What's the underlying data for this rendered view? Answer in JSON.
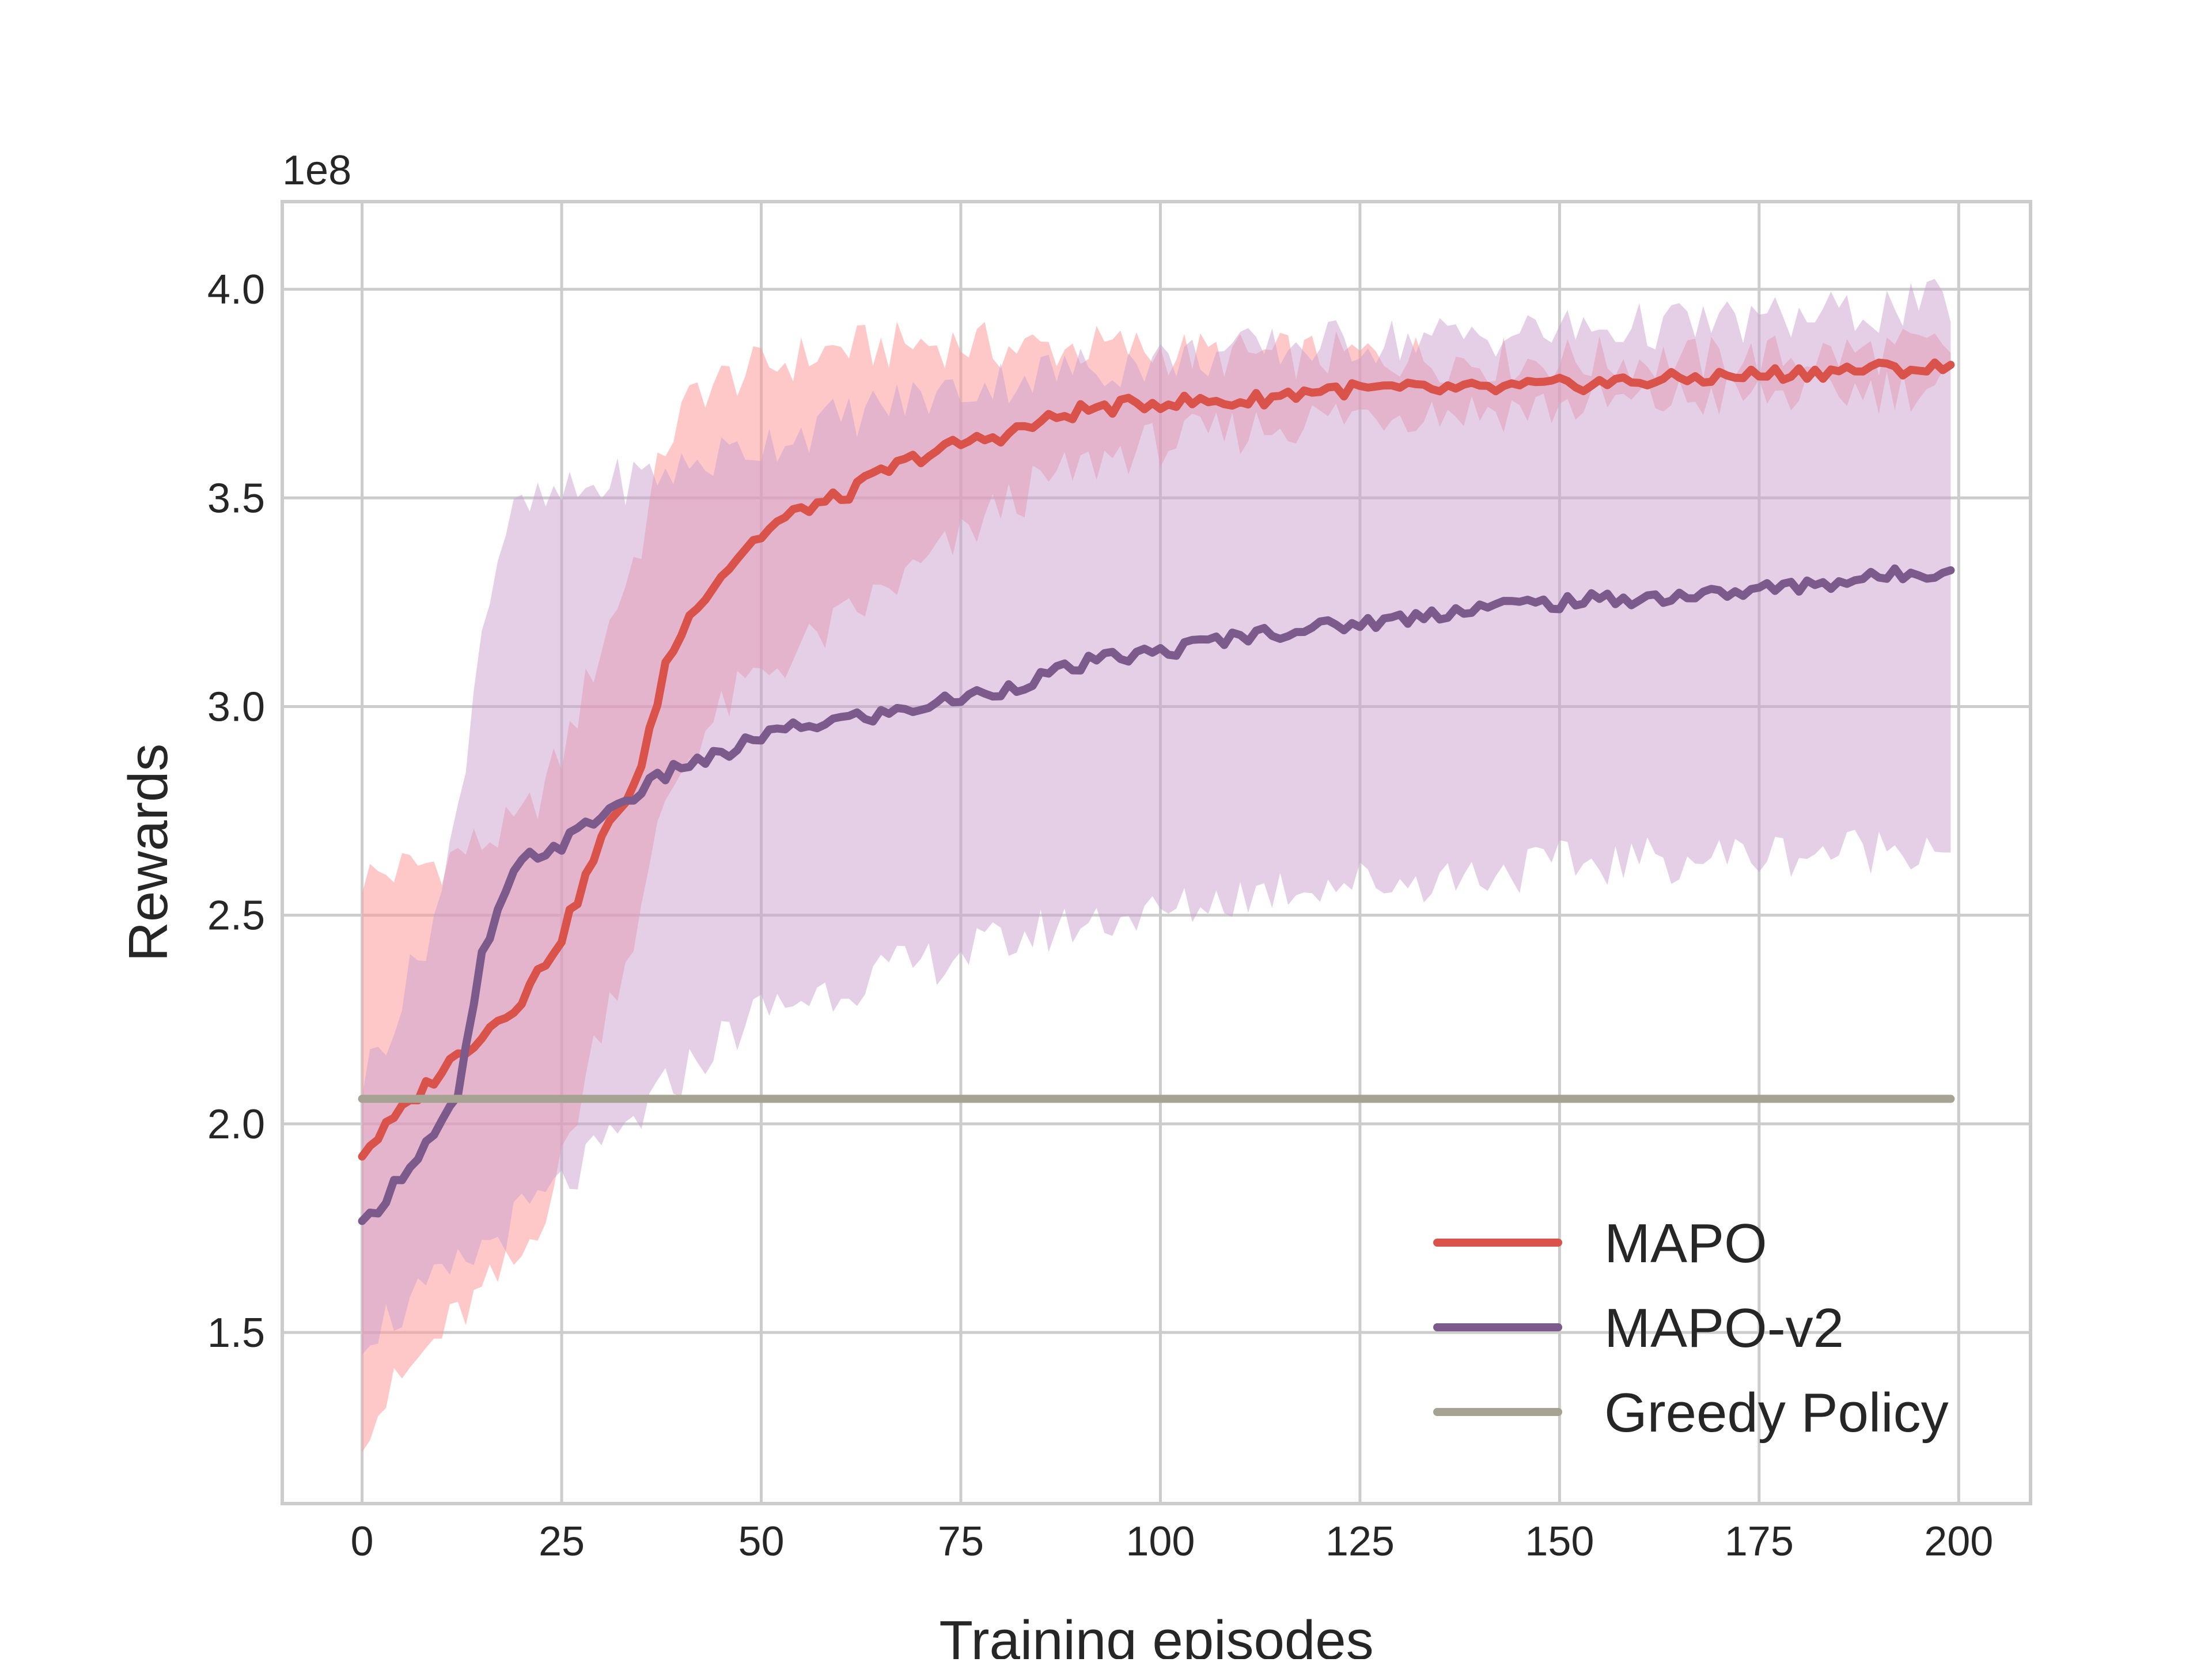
{
  "chart_data": {
    "type": "line",
    "title": "",
    "xlabel": "Training episodes",
    "ylabel": "Rewards",
    "y_offset_label": "1e8",
    "xlim": [
      -10,
      209
    ],
    "ylim": [
      1.09,
      4.21
    ],
    "y_scale_factor": 100000000,
    "x_ticks": [
      "0",
      "25",
      "50",
      "75",
      "100",
      "125",
      "150",
      "175",
      "200"
    ],
    "x_tick_values": [
      0,
      25,
      50,
      75,
      100,
      125,
      150,
      175,
      200
    ],
    "y_ticks": [
      "1.5",
      "2.0",
      "2.5",
      "3.0",
      "3.5",
      "4.0"
    ],
    "y_tick_values": [
      1.5,
      2.0,
      2.5,
      3.0,
      3.5,
      4.0
    ],
    "grid": true,
    "legend_position": "bottom-right",
    "series": [
      {
        "name": "MAPO",
        "color": "#d9534a",
        "band_color": "#ff9a9a",
        "band_opacity": 0.55,
        "x": [
          0,
          10,
          20,
          25,
          30,
          35,
          38,
          42,
          48,
          52,
          56,
          60,
          65,
          70,
          75,
          80,
          85,
          90,
          95,
          100,
          110,
          120,
          130,
          140,
          150,
          160,
          170,
          180,
          190,
          199
        ],
        "mean": [
          1.93,
          2.13,
          2.3,
          2.45,
          2.68,
          2.85,
          3.1,
          3.25,
          3.38,
          3.44,
          3.48,
          3.5,
          3.56,
          3.6,
          3.63,
          3.65,
          3.68,
          3.71,
          3.72,
          3.73,
          3.73,
          3.76,
          3.76,
          3.76,
          3.77,
          3.78,
          3.79,
          3.8,
          3.81,
          3.81
        ],
        "lower": [
          1.27,
          1.5,
          1.68,
          1.9,
          2.25,
          2.5,
          2.78,
          2.92,
          3.05,
          3.1,
          3.15,
          3.2,
          3.27,
          3.33,
          3.4,
          3.48,
          3.53,
          3.57,
          3.61,
          3.63,
          3.66,
          3.69,
          3.71,
          3.71,
          3.72,
          3.73,
          3.74,
          3.75,
          3.76,
          3.77
        ],
        "upper": [
          2.59,
          2.63,
          2.72,
          2.88,
          3.15,
          3.4,
          3.63,
          3.76,
          3.8,
          3.82,
          3.84,
          3.86,
          3.86,
          3.87,
          3.87,
          3.86,
          3.86,
          3.86,
          3.86,
          3.85,
          3.84,
          3.84,
          3.84,
          3.83,
          3.83,
          3.83,
          3.83,
          3.84,
          3.85,
          3.86
        ]
      },
      {
        "name": "MAPO-v2",
        "color": "#7d5a8c",
        "band_color": "#c9a0cf",
        "band_opacity": 0.5,
        "x": [
          0,
          5,
          10,
          12,
          15,
          18,
          20,
          25,
          30,
          35,
          40,
          45,
          50,
          55,
          60,
          65,
          70,
          75,
          80,
          85,
          90,
          95,
          100,
          110,
          120,
          130,
          140,
          150,
          160,
          170,
          180,
          190,
          199
        ],
        "mean": [
          1.75,
          1.88,
          2.0,
          2.06,
          2.4,
          2.55,
          2.63,
          2.67,
          2.74,
          2.8,
          2.86,
          2.88,
          2.93,
          2.95,
          2.97,
          2.98,
          3.0,
          3.02,
          3.04,
          3.07,
          3.1,
          3.12,
          3.13,
          3.17,
          3.19,
          3.21,
          3.24,
          3.25,
          3.26,
          3.27,
          3.29,
          3.31,
          3.33
        ],
        "lower": [
          1.5,
          1.55,
          1.62,
          1.65,
          1.7,
          1.75,
          1.78,
          1.85,
          1.93,
          2.02,
          2.12,
          2.2,
          2.27,
          2.3,
          2.33,
          2.36,
          2.38,
          2.41,
          2.43,
          2.46,
          2.48,
          2.5,
          2.5,
          2.55,
          2.58,
          2.58,
          2.6,
          2.62,
          2.63,
          2.64,
          2.65,
          2.66,
          2.68
        ],
        "upper": [
          2.1,
          2.3,
          2.55,
          2.75,
          3.2,
          3.43,
          3.47,
          3.5,
          3.53,
          3.55,
          3.57,
          3.6,
          3.63,
          3.66,
          3.69,
          3.72,
          3.74,
          3.76,
          3.78,
          3.8,
          3.81,
          3.82,
          3.83,
          3.85,
          3.87,
          3.88,
          3.89,
          3.9,
          3.91,
          3.92,
          3.93,
          3.95,
          3.97
        ]
      },
      {
        "name": "Greedy Policy",
        "color": "#a6a393",
        "x": [
          0,
          199
        ],
        "mean": [
          2.06,
          2.06
        ]
      }
    ]
  }
}
